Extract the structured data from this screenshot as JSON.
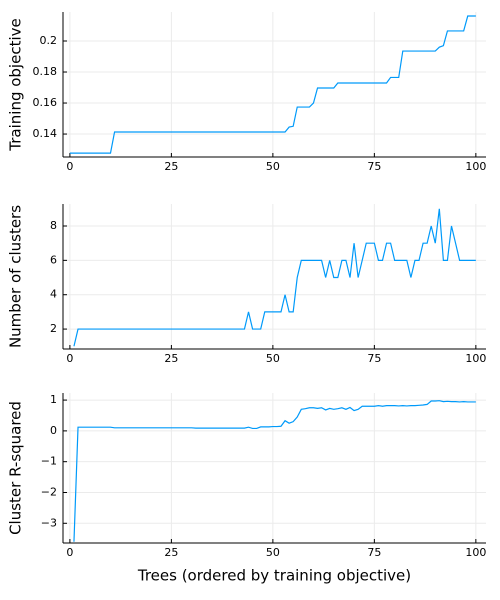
{
  "chart_data": [
    {
      "type": "line",
      "ylabel": "Training objective",
      "xlim": [
        -1.7,
        102.5
      ],
      "xticks": [
        0,
        25,
        50,
        75,
        100
      ],
      "ylim": [
        0.1252,
        0.2187
      ],
      "yticks": [
        0.14,
        0.16,
        0.18,
        0.2
      ],
      "grid": true,
      "x": [
        0,
        1,
        2,
        3,
        4,
        5,
        6,
        7,
        8,
        9,
        10,
        11,
        12,
        13,
        14,
        15,
        16,
        17,
        18,
        19,
        20,
        21,
        22,
        23,
        24,
        25,
        26,
        27,
        28,
        29,
        30,
        31,
        32,
        33,
        34,
        35,
        36,
        37,
        38,
        39,
        40,
        41,
        42,
        43,
        44,
        45,
        46,
        47,
        48,
        49,
        50,
        51,
        52,
        53,
        54,
        55,
        56,
        57,
        58,
        59,
        60,
        61,
        62,
        63,
        64,
        65,
        66,
        67,
        68,
        69,
        70,
        71,
        72,
        73,
        74,
        75,
        76,
        77,
        78,
        79,
        80,
        81,
        82,
        83,
        84,
        85,
        86,
        87,
        88,
        89,
        90,
        91,
        92,
        93,
        94,
        95,
        96,
        97,
        98,
        99,
        100
      ],
      "series": [
        {
          "color": "#009afa",
          "values": [
            0.1277,
            0.1277,
            0.1277,
            0.1277,
            0.1277,
            0.1277,
            0.1277,
            0.1277,
            0.1277,
            0.1277,
            0.1277,
            0.1413,
            0.1413,
            0.1413,
            0.1413,
            0.1413,
            0.1413,
            0.1413,
            0.1413,
            0.1413,
            0.1413,
            0.1413,
            0.1413,
            0.1413,
            0.1413,
            0.1413,
            0.1413,
            0.1413,
            0.1413,
            0.1413,
            0.1413,
            0.1413,
            0.1413,
            0.1413,
            0.1413,
            0.1413,
            0.1413,
            0.1413,
            0.1413,
            0.1413,
            0.1413,
            0.1413,
            0.1413,
            0.1413,
            0.1413,
            0.1413,
            0.1413,
            0.1413,
            0.1413,
            0.1413,
            0.1413,
            0.1413,
            0.1413,
            0.1413,
            0.1445,
            0.145,
            0.1574,
            0.1574,
            0.1574,
            0.1574,
            0.16,
            0.1697,
            0.1697,
            0.1697,
            0.1697,
            0.1697,
            0.1729,
            0.1729,
            0.1729,
            0.1729,
            0.1729,
            0.1729,
            0.1729,
            0.1729,
            0.1729,
            0.1729,
            0.1729,
            0.1729,
            0.1729,
            0.1765,
            0.1765,
            0.1765,
            0.1935,
            0.1935,
            0.1935,
            0.1935,
            0.1935,
            0.1935,
            0.1935,
            0.1935,
            0.1935,
            0.196,
            0.197,
            0.2065,
            0.2065,
            0.2065,
            0.2065,
            0.2065,
            0.2161,
            0.2161,
            0.2161
          ]
        }
      ]
    },
    {
      "type": "line",
      "ylabel": "Number of clusters",
      "xlim": [
        -1.7,
        102.5
      ],
      "xticks": [
        0,
        25,
        50,
        75,
        100
      ],
      "ylim": [
        0.84,
        9.28
      ],
      "yticks": [
        2,
        4,
        6,
        8
      ],
      "grid": true,
      "x": [
        1,
        2,
        3,
        4,
        5,
        6,
        7,
        8,
        9,
        10,
        11,
        12,
        13,
        14,
        15,
        16,
        17,
        18,
        19,
        20,
        21,
        22,
        23,
        24,
        25,
        26,
        27,
        28,
        29,
        30,
        31,
        32,
        33,
        34,
        35,
        36,
        37,
        38,
        39,
        40,
        41,
        42,
        43,
        44,
        45,
        46,
        47,
        48,
        49,
        50,
        51,
        52,
        53,
        54,
        55,
        56,
        57,
        58,
        59,
        60,
        61,
        62,
        63,
        64,
        65,
        66,
        67,
        68,
        69,
        70,
        71,
        72,
        73,
        74,
        75,
        76,
        77,
        78,
        79,
        80,
        81,
        82,
        83,
        84,
        85,
        86,
        87,
        88,
        89,
        90,
        91,
        92,
        93,
        94,
        95,
        96,
        97,
        98,
        99,
        100
      ],
      "series": [
        {
          "color": "#009afa",
          "values": [
            1,
            2,
            2,
            2,
            2,
            2,
            2,
            2,
            2,
            2,
            2,
            2,
            2,
            2,
            2,
            2,
            2,
            2,
            2,
            2,
            2,
            2,
            2,
            2,
            2,
            2,
            2,
            2,
            2,
            2,
            2,
            2,
            2,
            2,
            2,
            2,
            2,
            2,
            2,
            2,
            2,
            2,
            2,
            3,
            2,
            2,
            2,
            3,
            3,
            3,
            3,
            3,
            4,
            3,
            3,
            5,
            6,
            6,
            6,
            6,
            6,
            6,
            5,
            6,
            5,
            5,
            6,
            6,
            5,
            7,
            5,
            6,
            7,
            7,
            7,
            6,
            6,
            7,
            7,
            6,
            6,
            6,
            6,
            5,
            6,
            6,
            7,
            7,
            8,
            7,
            9,
            6,
            6,
            8,
            7,
            6,
            6,
            6,
            6,
            6
          ]
        }
      ]
    },
    {
      "type": "line",
      "ylabel": "Cluster R-squared",
      "xlabel": "Trees (ordered by training objective)",
      "xlim": [
        -1.7,
        102.5
      ],
      "xticks": [
        0,
        25,
        50,
        75,
        100
      ],
      "ylim": [
        -3.64,
        1.23
      ],
      "yticks": [
        {
          "value": -3,
          "label": "−3"
        },
        {
          "value": -2,
          "label": "−2"
        },
        {
          "value": -1,
          "label": "−1"
        },
        0,
        1
      ],
      "grid": true,
      "x": [
        1,
        2,
        3,
        4,
        5,
        6,
        7,
        8,
        9,
        10,
        11,
        12,
        13,
        14,
        15,
        16,
        17,
        18,
        19,
        20,
        21,
        22,
        23,
        24,
        25,
        26,
        27,
        28,
        29,
        30,
        31,
        32,
        33,
        34,
        35,
        36,
        37,
        38,
        39,
        40,
        41,
        42,
        43,
        44,
        45,
        46,
        47,
        48,
        49,
        50,
        51,
        52,
        53,
        54,
        55,
        56,
        57,
        58,
        59,
        60,
        61,
        62,
        63,
        64,
        65,
        66,
        67,
        68,
        69,
        70,
        71,
        72,
        73,
        74,
        75,
        76,
        77,
        78,
        79,
        80,
        81,
        82,
        83,
        84,
        85,
        86,
        87,
        88,
        89,
        90,
        91,
        92,
        93,
        94,
        95,
        96,
        97,
        98,
        99,
        100
      ],
      "series": [
        {
          "color": "#009afa",
          "values": [
            -3.6,
            0.12,
            0.12,
            0.12,
            0.12,
            0.12,
            0.12,
            0.12,
            0.12,
            0.12,
            0.1,
            0.1,
            0.1,
            0.1,
            0.1,
            0.1,
            0.1,
            0.1,
            0.1,
            0.1,
            0.1,
            0.1,
            0.1,
            0.1,
            0.1,
            0.1,
            0.1,
            0.1,
            0.1,
            0.1,
            0.09,
            0.09,
            0.09,
            0.09,
            0.09,
            0.09,
            0.09,
            0.09,
            0.09,
            0.09,
            0.09,
            0.09,
            0.09,
            0.12,
            0.08,
            0.08,
            0.13,
            0.13,
            0.13,
            0.14,
            0.14,
            0.15,
            0.33,
            0.25,
            0.3,
            0.45,
            0.7,
            0.72,
            0.75,
            0.75,
            0.73,
            0.75,
            0.68,
            0.73,
            0.7,
            0.72,
            0.75,
            0.7,
            0.76,
            0.66,
            0.7,
            0.8,
            0.8,
            0.8,
            0.8,
            0.82,
            0.8,
            0.82,
            0.82,
            0.82,
            0.81,
            0.82,
            0.81,
            0.82,
            0.82,
            0.83,
            0.84,
            0.86,
            0.97,
            0.97,
            0.98,
            0.95,
            0.96,
            0.95,
            0.95,
            0.94,
            0.95,
            0.94,
            0.94,
            0.94
          ]
        }
      ]
    }
  ]
}
